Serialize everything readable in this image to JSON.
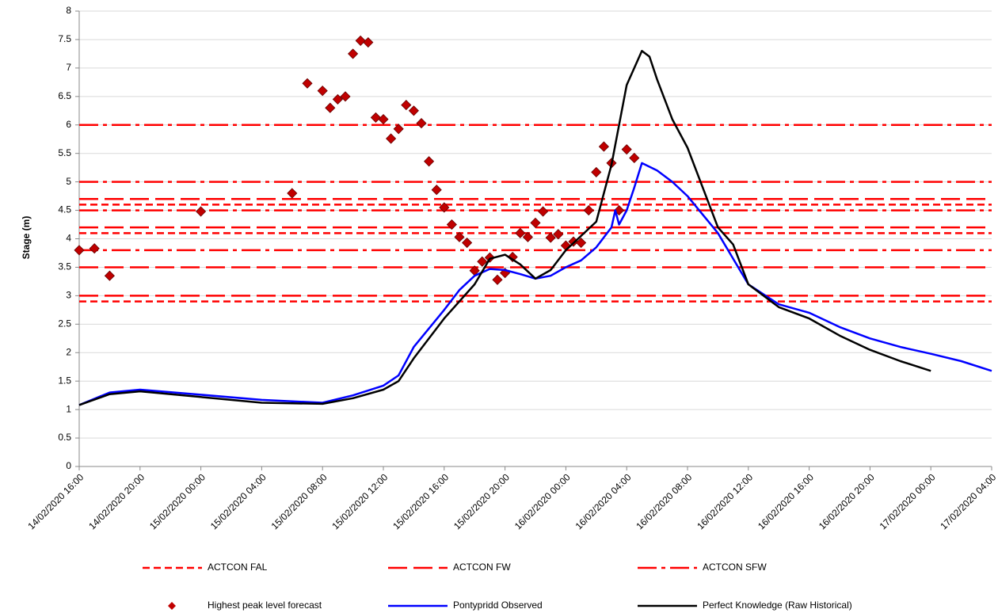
{
  "chart_data": {
    "type": "line",
    "y_label": "Stage (m)",
    "grid": true,
    "ylim": [
      0,
      8
    ],
    "yticks": [
      0,
      0.5,
      1,
      1.5,
      2,
      2.5,
      3,
      3.5,
      4,
      4.5,
      5,
      5.5,
      6,
      6.5,
      7,
      7.5,
      8
    ],
    "xlim": [
      "2020-02-14T16:00",
      "2020-02-17T04:00"
    ],
    "xticks": [
      {
        "value": "2020-02-14T16:00",
        "label": "14/02/2020 16:00"
      },
      {
        "value": "2020-02-14T20:00",
        "label": "14/02/2020 20:00"
      },
      {
        "value": "2020-02-15T00:00",
        "label": "15/02/2020 00:00"
      },
      {
        "value": "2020-02-15T04:00",
        "label": "15/02/2020 04:00"
      },
      {
        "value": "2020-02-15T08:00",
        "label": "15/02/2020 08:00"
      },
      {
        "value": "2020-02-15T12:00",
        "label": "15/02/2020 12:00"
      },
      {
        "value": "2020-02-15T16:00",
        "label": "15/02/2020 16:00"
      },
      {
        "value": "2020-02-15T20:00",
        "label": "15/02/2020 20:00"
      },
      {
        "value": "2020-02-16T00:00",
        "label": "16/02/2020 00:00"
      },
      {
        "value": "2020-02-16T04:00",
        "label": "16/02/2020 04:00"
      },
      {
        "value": "2020-02-16T08:00",
        "label": "16/02/2020 08:00"
      },
      {
        "value": "2020-02-16T12:00",
        "label": "16/02/2020 12:00"
      },
      {
        "value": "2020-02-16T16:00",
        "label": "16/02/2020 16:00"
      },
      {
        "value": "2020-02-16T20:00",
        "label": "16/02/2020 20:00"
      },
      {
        "value": "2020-02-17T00:00",
        "label": "17/02/2020 00:00"
      },
      {
        "value": "2020-02-17T04:00",
        "label": "17/02/2020 04:00"
      }
    ],
    "series": [
      {
        "name": "ACTCON FAL",
        "kind": "threshold",
        "dash": "short",
        "color": "#ff0000",
        "values": [
          2.9,
          4.1,
          4.6
        ]
      },
      {
        "name": "ACTCON FW",
        "kind": "threshold",
        "dash": "long",
        "color": "#ff0000",
        "values": [
          3.0,
          3.5,
          4.2,
          4.7
        ]
      },
      {
        "name": "ACTCON SFW",
        "kind": "threshold",
        "dash": "dashdot",
        "color": "#ff0000",
        "values": [
          3.8,
          4.5,
          5.0,
          6.0
        ]
      },
      {
        "name": "Highest peak level forecast",
        "kind": "scatter",
        "color": "#c00000",
        "x": [
          "2020-02-14T16:00",
          "2020-02-14T17:00",
          "2020-02-14T18:00",
          "2020-02-15T00:00",
          "2020-02-15T06:00",
          "2020-02-15T07:00",
          "2020-02-15T08:00",
          "2020-02-15T08:30",
          "2020-02-15T09:00",
          "2020-02-15T09:30",
          "2020-02-15T10:00",
          "2020-02-15T10:30",
          "2020-02-15T11:00",
          "2020-02-15T11:30",
          "2020-02-15T12:00",
          "2020-02-15T12:30",
          "2020-02-15T13:00",
          "2020-02-15T13:30",
          "2020-02-15T14:00",
          "2020-02-15T14:30",
          "2020-02-15T15:00",
          "2020-02-15T15:30",
          "2020-02-15T16:00",
          "2020-02-15T16:30",
          "2020-02-15T17:00",
          "2020-02-15T17:30",
          "2020-02-15T18:00",
          "2020-02-15T18:30",
          "2020-02-15T19:00",
          "2020-02-15T19:30",
          "2020-02-15T20:00",
          "2020-02-15T20:30",
          "2020-02-15T21:00",
          "2020-02-15T21:30",
          "2020-02-15T22:00",
          "2020-02-15T22:30",
          "2020-02-15T23:00",
          "2020-02-15T23:30",
          "2020-02-16T00:00",
          "2020-02-16T00:30",
          "2020-02-16T01:00",
          "2020-02-16T01:30",
          "2020-02-16T02:00",
          "2020-02-16T02:30",
          "2020-02-16T03:00",
          "2020-02-16T03:30",
          "2020-02-16T04:00",
          "2020-02-16T04:30"
        ],
        "values": [
          3.8,
          3.83,
          3.35,
          4.48,
          4.8,
          6.73,
          6.6,
          6.3,
          6.45,
          6.5,
          7.25,
          7.48,
          7.45,
          6.13,
          6.1,
          5.76,
          5.93,
          6.35,
          6.25,
          6.03,
          5.36,
          4.86,
          4.55,
          4.25,
          4.03,
          3.93,
          3.44,
          3.6,
          3.67,
          3.28,
          3.4,
          3.68,
          4.1,
          4.03,
          4.28,
          4.48,
          4.02,
          4.08,
          3.88,
          3.95,
          3.93,
          4.5,
          5.17,
          5.62,
          5.33,
          4.5,
          5.57,
          5.42
        ]
      },
      {
        "name": "Pontypridd Observed",
        "kind": "line",
        "color": "#0000ff",
        "x": [
          "2020-02-14T16:00",
          "2020-02-14T18:00",
          "2020-02-14T20:00",
          "2020-02-15T00:00",
          "2020-02-15T04:00",
          "2020-02-15T08:00",
          "2020-02-15T10:00",
          "2020-02-15T12:00",
          "2020-02-15T13:00",
          "2020-02-15T14:00",
          "2020-02-15T16:00",
          "2020-02-15T17:00",
          "2020-02-15T18:00",
          "2020-02-15T19:00",
          "2020-02-15T20:00",
          "2020-02-15T21:00",
          "2020-02-15T22:00",
          "2020-02-15T23:00",
          "2020-02-16T00:00",
          "2020-02-16T01:00",
          "2020-02-16T02:00",
          "2020-02-16T03:00",
          "2020-02-16T03:15",
          "2020-02-16T03:30",
          "2020-02-16T04:00",
          "2020-02-16T04:30",
          "2020-02-16T05:00",
          "2020-02-16T06:00",
          "2020-02-16T07:00",
          "2020-02-16T08:00",
          "2020-02-16T10:00",
          "2020-02-16T12:00",
          "2020-02-16T14:00",
          "2020-02-16T16:00",
          "2020-02-16T18:00",
          "2020-02-16T20:00",
          "2020-02-16T22:00",
          "2020-02-17T00:00",
          "2020-02-17T02:00",
          "2020-02-17T04:00"
        ],
        "values": [
          1.08,
          1.3,
          1.35,
          1.26,
          1.17,
          1.12,
          1.25,
          1.42,
          1.6,
          2.1,
          2.75,
          3.1,
          3.35,
          3.47,
          3.45,
          3.38,
          3.3,
          3.35,
          3.5,
          3.62,
          3.85,
          4.2,
          4.5,
          4.25,
          4.5,
          4.9,
          5.33,
          5.2,
          5.0,
          4.75,
          4.1,
          3.2,
          2.85,
          2.7,
          2.45,
          2.25,
          2.1,
          1.98,
          1.85,
          1.68
        ]
      },
      {
        "name": "Perfect Knowledge (Raw Historical)",
        "kind": "line",
        "color": "#000000",
        "x": [
          "2020-02-14T16:00",
          "2020-02-14T18:00",
          "2020-02-14T20:00",
          "2020-02-15T00:00",
          "2020-02-15T04:00",
          "2020-02-15T08:00",
          "2020-02-15T10:00",
          "2020-02-15T12:00",
          "2020-02-15T13:00",
          "2020-02-15T14:00",
          "2020-02-15T16:00",
          "2020-02-15T18:00",
          "2020-02-15T19:00",
          "2020-02-15T20:00",
          "2020-02-15T21:00",
          "2020-02-15T22:00",
          "2020-02-15T23:00",
          "2020-02-16T00:00",
          "2020-02-16T01:00",
          "2020-02-16T02:00",
          "2020-02-16T03:00",
          "2020-02-16T04:00",
          "2020-02-16T05:00",
          "2020-02-16T05:30",
          "2020-02-16T06:00",
          "2020-02-16T07:00",
          "2020-02-16T08:00",
          "2020-02-16T09:00",
          "2020-02-16T10:00",
          "2020-02-16T11:00",
          "2020-02-16T12:00",
          "2020-02-16T14:00",
          "2020-02-16T16:00",
          "2020-02-16T18:00",
          "2020-02-16T20:00",
          "2020-02-16T22:00",
          "2020-02-17T00:00"
        ],
        "values": [
          1.08,
          1.27,
          1.32,
          1.22,
          1.12,
          1.1,
          1.2,
          1.35,
          1.5,
          1.9,
          2.6,
          3.2,
          3.65,
          3.72,
          3.55,
          3.3,
          3.45,
          3.8,
          4.05,
          4.3,
          5.3,
          6.7,
          7.3,
          7.2,
          6.8,
          6.1,
          5.6,
          4.9,
          4.2,
          3.9,
          3.2,
          2.8,
          2.6,
          2.3,
          2.05,
          1.85,
          1.68
        ]
      }
    ]
  }
}
